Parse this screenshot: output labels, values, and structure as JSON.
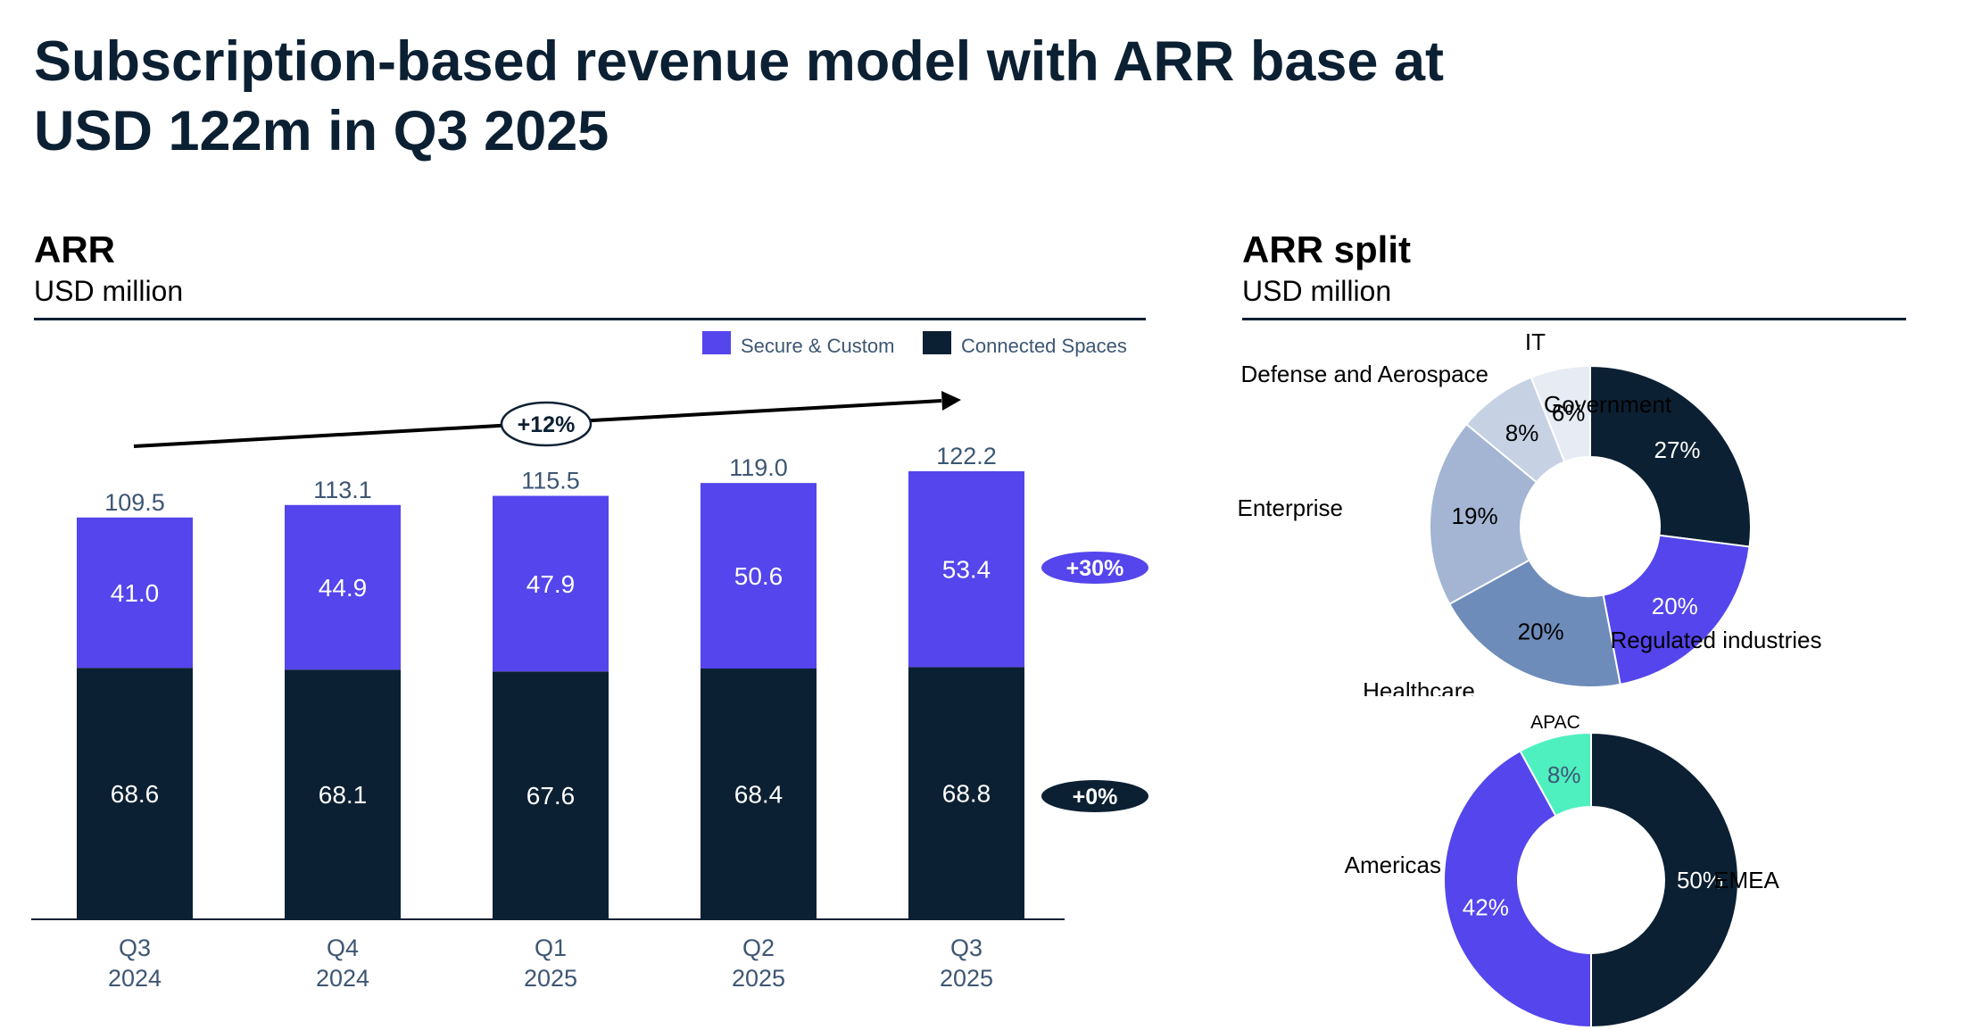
{
  "title_line1": "Subscription-based revenue model with ARR base at",
  "title_line2": "USD 122m in Q3 2025",
  "colors": {
    "secure": "#5445ec",
    "connected": "#0c2033",
    "axis_text": "#3d5673",
    "americas": "#5445ec",
    "apac": "#4ff0c0"
  },
  "arr": {
    "title": "ARR",
    "subtitle": "USD million",
    "growth_label": "+12%",
    "legend": [
      {
        "name": "Secure & Custom",
        "color": "#5445ec"
      },
      {
        "name": "Connected Spaces",
        "color": "#0c2033"
      }
    ],
    "series_change": {
      "secure": "+30%",
      "connected": "+0%"
    }
  },
  "arr_split": {
    "title": "ARR split",
    "subtitle": "USD million"
  },
  "chart_data": [
    {
      "type": "bar",
      "stacked": true,
      "categories": [
        [
          "Q3",
          "2024"
        ],
        [
          "Q4",
          "2024"
        ],
        [
          "Q1",
          "2025"
        ],
        [
          "Q2",
          "2025"
        ],
        [
          "Q3",
          "2025"
        ]
      ],
      "series": [
        {
          "name": "Connected Spaces",
          "values": [
            68.6,
            68.1,
            67.6,
            68.4,
            68.8
          ]
        },
        {
          "name": "Secure & Custom",
          "values": [
            41.0,
            44.9,
            47.9,
            50.6,
            53.4
          ]
        }
      ],
      "totals": [
        "109.5",
        "113.1",
        "115.5",
        "119.0",
        "122.2"
      ],
      "ylim": [
        0,
        122.2
      ],
      "legend": "top-right"
    },
    {
      "type": "pie",
      "donut": true,
      "slices": [
        {
          "label": "Government",
          "value": 27,
          "text": "27%",
          "color": "#0c2033",
          "text_color": "#ffffff"
        },
        {
          "label": "Regulated industries",
          "value": 20,
          "text": "20%",
          "color": "#5445ec",
          "text_color": "#ffffff"
        },
        {
          "label": "Healthcare",
          "value": 20,
          "text": "20%",
          "color": "#6d8cba",
          "text_color": "#000000"
        },
        {
          "label": "Enterprise",
          "value": 19,
          "text": "19%",
          "color": "#a3b5d3",
          "text_color": "#000000"
        },
        {
          "label": "Defense and Aerospace",
          "value": 8,
          "text": "8%",
          "color": "#c6d2e4",
          "text_color": "#000000"
        },
        {
          "label": "IT",
          "value": 6,
          "text": "6%",
          "color": "#e7ecf4",
          "text_color": "#000000"
        }
      ]
    },
    {
      "type": "pie",
      "donut": true,
      "slices": [
        {
          "label": "EMEA",
          "value": 50,
          "text": "50%",
          "color": "#0c2033",
          "text_color": "#ffffff"
        },
        {
          "label": "Americas",
          "value": 42,
          "text": "42%",
          "color": "#5445ec",
          "text_color": "#ffffff"
        },
        {
          "label": "APAC",
          "value": 8,
          "text": "8%",
          "color": "#4ff0c0",
          "text_color": "#3d5673"
        }
      ]
    }
  ]
}
